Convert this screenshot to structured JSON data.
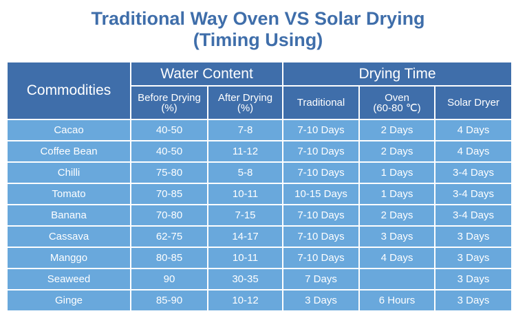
{
  "title": {
    "line1": "Traditional Way Oven VS Solar Drying",
    "line2": "(Timing Using)"
  },
  "header": {
    "commodities": "Commodities",
    "water_content": "Water Content",
    "drying_time": "Drying Time",
    "before_drying": "Before Drying",
    "before_drying_unit": "(%)",
    "after_drying": "After Drying",
    "after_drying_unit": "(%)",
    "traditional": "Traditional",
    "oven": "Oven",
    "oven_temp": "(60-80 ℃)",
    "solar_dryer": "Solar Dryer"
  },
  "colors": {
    "header_bg": "#3f6eaa",
    "cell_bg": "#69a8dc",
    "title": "#3f6eaa"
  },
  "rows": [
    {
      "commodity": "Cacao",
      "before": "40-50",
      "after": "7-8",
      "traditional": "7-10 Days",
      "oven": "2 Days",
      "solar": "4 Days"
    },
    {
      "commodity": "Coffee Bean",
      "before": "40-50",
      "after": "11-12",
      "traditional": "7-10 Days",
      "oven": "2 Days",
      "solar": "4 Days"
    },
    {
      "commodity": "Chilli",
      "before": "75-80",
      "after": "5-8",
      "traditional": "7-10 Days",
      "oven": "1 Days",
      "solar": "3-4 Days"
    },
    {
      "commodity": "Tomato",
      "before": "70-85",
      "after": "10-11",
      "traditional": "10-15 Days",
      "oven": "1 Days",
      "solar": "3-4 Days"
    },
    {
      "commodity": "Banana",
      "before": "70-80",
      "after": "7-15",
      "traditional": "7-10 Days",
      "oven": "2 Days",
      "solar": "3-4 Days"
    },
    {
      "commodity": "Cassava",
      "before": "62-75",
      "after": "14-17",
      "traditional": "7-10 Days",
      "oven": "3 Days",
      "solar": "3 Days"
    },
    {
      "commodity": "Manggo",
      "before": "80-85",
      "after": "10-11",
      "traditional": "7-10 Days",
      "oven": "4 Days",
      "solar": "3 Days"
    },
    {
      "commodity": "Seaweed",
      "before": "90",
      "after": "30-35",
      "traditional": "7 Days",
      "oven": "",
      "solar": "3 Days"
    },
    {
      "commodity": "Ginge",
      "before": "85-90",
      "after": "10-12",
      "traditional": "3 Days",
      "oven": "6 Hours",
      "solar": "3 Days"
    }
  ]
}
